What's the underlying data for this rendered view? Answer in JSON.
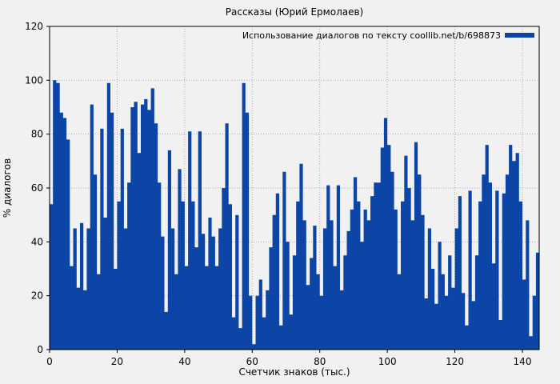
{
  "chart": {
    "title": "Рассказы (Юрий Ермолаев)",
    "legend_label": "Использование диалогов по тексту coollib.net/b/698873",
    "xlabel": "Счетчик знаков (тыс.)",
    "ylabel": "% диалогов"
  },
  "chart_data": {
    "type": "area",
    "title": "Рассказы (Юрий Ермолаев)",
    "legend": "Использование диалогов по тексту coollib.net/b/698873",
    "legend_position": "top-right-inside",
    "xlabel": "Счетчик знаков (тыс.)",
    "ylabel": "% диалогов",
    "xlim": [
      0,
      145
    ],
    "ylim": [
      0,
      120
    ],
    "x_ticks": [
      0,
      20,
      40,
      60,
      80,
      100,
      120,
      140
    ],
    "y_ticks": [
      0,
      20,
      40,
      60,
      80,
      100,
      120
    ],
    "grid": "dotted",
    "style": "filled-steps",
    "x_start": 0,
    "x_step": 1,
    "x_unit": "thousand characters",
    "y_unit": "% of dialogs",
    "values": [
      54,
      100,
      99,
      88,
      86,
      78,
      31,
      45,
      23,
      47,
      22,
      45,
      91,
      65,
      28,
      82,
      49,
      99,
      88,
      30,
      55,
      82,
      45,
      62,
      90,
      92,
      73,
      91,
      93,
      89,
      97,
      84,
      62,
      42,
      14,
      74,
      45,
      28,
      67,
      55,
      31,
      81,
      55,
      38,
      81,
      43,
      31,
      49,
      42,
      31,
      45,
      60,
      84,
      54,
      12,
      50,
      8,
      99,
      88,
      20,
      2,
      20,
      26,
      12,
      22,
      38,
      50,
      58,
      9,
      66,
      40,
      13,
      35,
      55,
      69,
      48,
      24,
      34,
      46,
      28,
      20,
      45,
      61,
      48,
      31,
      61,
      22,
      35,
      44,
      52,
      64,
      55,
      40,
      52,
      48,
      57,
      62,
      62,
      75,
      86,
      76,
      66,
      52,
      28,
      55,
      72,
      60,
      48,
      77,
      65,
      50,
      19,
      45,
      30,
      17,
      40,
      28,
      20,
      35,
      23,
      45,
      57,
      21,
      9,
      59,
      18,
      35,
      55,
      65,
      76,
      62,
      32,
      59,
      11,
      58,
      65,
      76,
      70,
      73,
      55,
      26,
      48,
      5,
      20,
      36,
      38
    ],
    "colors": {
      "series": "#0c45a5",
      "background": "#f1f1f1",
      "grid": "#ababab",
      "axis": "#000000",
      "text": "#000000"
    }
  }
}
